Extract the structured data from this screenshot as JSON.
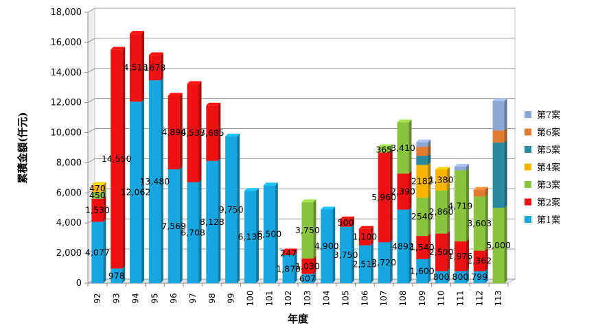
{
  "chart_data": {
    "type": "bar",
    "stacked": true,
    "title": "",
    "xlabel": "年度",
    "ylabel": "累積金額(仟元)",
    "ylim": [
      0,
      18000
    ],
    "yticks": [
      "0",
      "2,000",
      "4,000",
      "6,000",
      "8,000",
      "10,000",
      "12,000",
      "14,000",
      "16,000",
      "18,000"
    ],
    "grid": true,
    "legend_position": "right",
    "categories": [
      "92",
      "93",
      "94",
      "95",
      "96",
      "97",
      "98",
      "99",
      "100",
      "101",
      "102",
      "103",
      "104",
      "105",
      "106",
      "107",
      "108",
      "109",
      "110",
      "111",
      "112",
      "113"
    ],
    "series": [
      {
        "name": "第1案",
        "color": "#16a6e0",
        "values": [
          4077,
          978,
          12062,
          13480,
          7569,
          6708,
          8128,
          9750,
          6138,
          6500,
          1870,
          607,
          4900,
          3750,
          2515,
          2720,
          4892,
          1600,
          800,
          800,
          799,
          0
        ],
        "labels": [
          "4,077",
          "978",
          "12,062",
          "13,480",
          "7,569",
          "6,708",
          "8,128",
          "9,750",
          "6,138",
          "6,500",
          "1,870",
          "607",
          "4,900",
          "3,750",
          "2,515",
          "2,720",
          "4892",
          "1,600",
          "800",
          "800",
          "799",
          ""
        ]
      },
      {
        "name": "第2案",
        "color": "#ee1111",
        "values": [
          1530,
          14550,
          4518,
          1678,
          4894,
          6537,
          3685,
          0,
          0,
          0,
          247,
          1030,
          0,
          500,
          1100,
          5960,
          2390,
          1540,
          2500,
          1976,
          1362,
          0
        ],
        "labels": [
          "1,530",
          "14,550",
          "4,518",
          "1678",
          "4,894",
          "6,537",
          "3,685",
          "",
          "",
          "",
          "247",
          "1,030",
          "",
          "500",
          "1,100",
          "5,960",
          "2,390",
          "1,540",
          "2,500",
          "1,976",
          "1,362",
          ""
        ]
      },
      {
        "name": "第3案",
        "color": "#8ac43f",
        "values": [
          450,
          0,
          0,
          0,
          0,
          0,
          0,
          0,
          0,
          0,
          0,
          3750,
          0,
          0,
          0,
          365,
          3410,
          2540,
          2860,
          4719,
          3603,
          5000
        ],
        "labels": [
          "450",
          "",
          "",
          "",
          "",
          "",
          "",
          "",
          "",
          "",
          "",
          "3,750",
          "",
          "",
          "",
          "365",
          "3,410",
          "2540",
          "2,860",
          "4,719",
          "3,603",
          "5,000"
        ]
      },
      {
        "name": "第4案",
        "color": "#f7b500",
        "values": [
          470,
          0,
          0,
          0,
          0,
          0,
          0,
          0,
          0,
          0,
          0,
          0,
          0,
          0,
          0,
          0,
          0,
          2182,
          1380,
          0,
          0,
          0
        ],
        "labels": [
          "470",
          "",
          "",
          "",
          "",
          "",
          "",
          "",
          "",
          "",
          "",
          "",
          "",
          "",
          "",
          "",
          "",
          "2182",
          "1,380",
          "",
          "",
          ""
        ]
      },
      {
        "name": "第5案",
        "color": "#2a8aa0",
        "values": [
          0,
          0,
          0,
          0,
          0,
          0,
          0,
          0,
          0,
          0,
          0,
          0,
          0,
          0,
          0,
          0,
          0,
          600,
          0,
          0,
          0,
          4350
        ],
        "labels": [
          "",
          "",
          "",
          "",
          "",
          "",
          "",
          "",
          "",
          "",
          "",
          "",
          "",
          "",
          "",
          "",
          "",
          "",
          "",
          "",
          "",
          ""
        ]
      },
      {
        "name": "第6案",
        "color": "#e07a30",
        "values": [
          0,
          0,
          0,
          0,
          0,
          0,
          0,
          0,
          0,
          0,
          0,
          0,
          0,
          0,
          0,
          0,
          0,
          600,
          0,
          0,
          450,
          800
        ],
        "labels": [
          "",
          "",
          "",
          "",
          "",
          "",
          "",
          "",
          "",
          "",
          "",
          "",
          "",
          "",
          "",
          "",
          "",
          "",
          "",
          "",
          "",
          ""
        ]
      },
      {
        "name": "第7案",
        "color": "#8ea6d4",
        "values": [
          0,
          0,
          0,
          0,
          0,
          0,
          0,
          0,
          0,
          0,
          0,
          0,
          0,
          0,
          0,
          0,
          0,
          300,
          0,
          250,
          0,
          1950
        ],
        "labels": [
          "",
          "",
          "",
          "",
          "",
          "",
          "",
          "",
          "",
          "",
          "",
          "",
          "",
          "",
          "",
          "",
          "",
          "",
          "",
          "",
          "",
          ""
        ]
      }
    ]
  }
}
